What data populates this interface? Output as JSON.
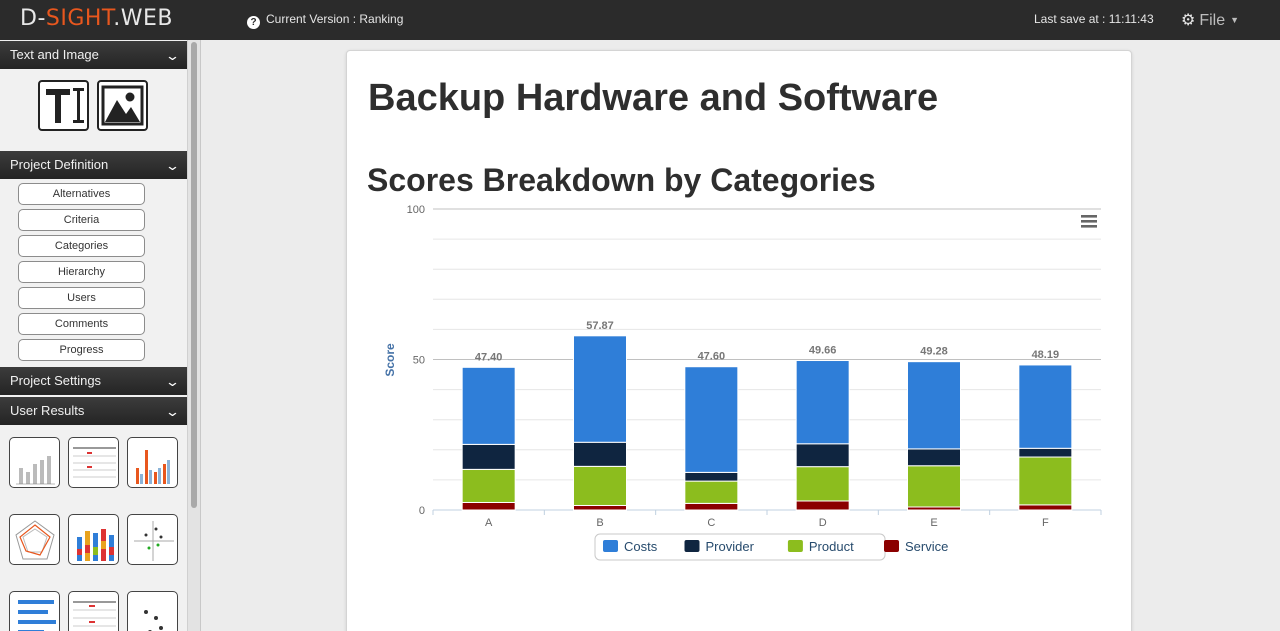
{
  "header": {
    "logo_left": "D-",
    "logo_accent": "SIGHT",
    "logo_right": ".WEB",
    "version_label": "Current Version : Ranking",
    "last_save": "Last save at : 11:11:43",
    "file_menu": "File"
  },
  "sidebar": {
    "sections": {
      "text_image": "Text and Image",
      "project_definition": "Project Definition",
      "project_settings": "Project Settings",
      "user_results": "User Results"
    },
    "definition_items": [
      "Alternatives",
      "Criteria",
      "Categories",
      "Hierarchy",
      "Users",
      "Comments",
      "Progress"
    ],
    "result_thumbnails": [
      "bar-chart",
      "table",
      "grouped-bar-chart",
      "radar-chart",
      "stacked-bar-chart",
      "scatter-plot",
      "horizontal-bar-chart",
      "data-table",
      "scatter-plot-2"
    ]
  },
  "main": {
    "title": "Backup Hardware and Software",
    "chart_heading": "Scores Breakdown by Categories"
  },
  "chart_data": {
    "type": "bar",
    "stacked": true,
    "categories": [
      "A",
      "B",
      "C",
      "D",
      "E",
      "F"
    ],
    "series": [
      {
        "name": "Service",
        "color": "#8b0000",
        "values": [
          2.5,
          1.5,
          2.2,
          3.0,
          1.0,
          1.7
        ]
      },
      {
        "name": "Product",
        "color": "#8cbd1e",
        "values": [
          11.0,
          13.0,
          7.4,
          11.4,
          13.7,
          15.9
        ]
      },
      {
        "name": "Provider",
        "color": "#0f2540",
        "values": [
          8.3,
          8.0,
          2.9,
          7.6,
          5.6,
          2.9
        ]
      },
      {
        "name": "Costs",
        "color": "#2f7ed8",
        "values": [
          25.6,
          35.37,
          35.1,
          27.66,
          28.98,
          27.69
        ]
      }
    ],
    "totals": [
      "47.40",
      "57.87",
      "47.60",
      "49.66",
      "49.28",
      "48.19"
    ],
    "legend_order": [
      "Costs",
      "Provider",
      "Product",
      "Service"
    ],
    "ylabel": "Score",
    "xlabel": "",
    "ylim": [
      0,
      100
    ],
    "yticks": [
      0,
      50,
      100
    ],
    "grid": true,
    "legend_position": "bottom-center"
  }
}
